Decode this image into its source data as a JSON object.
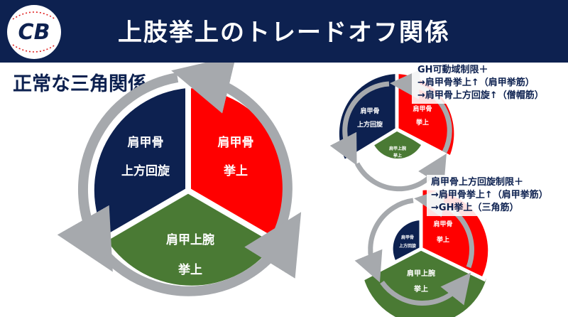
{
  "header": {
    "title": "上肢挙上のトレードオフ関係",
    "logo_text": "CB"
  },
  "colors": {
    "navy": "#0d2150",
    "red": "#ff0000",
    "green": "#4a7a34",
    "arrow_gray": "#a6a9ad"
  },
  "main": {
    "subtitle": "正常な三角関係",
    "segments": {
      "upward_rotation": {
        "line1": "肩甲骨",
        "line2": "上方回旋"
      },
      "scapular_elevation": {
        "line1": "肩甲骨",
        "line2": "挙上"
      },
      "humeral_elevation": {
        "line1": "肩甲上腕",
        "line2": "挙上"
      }
    }
  },
  "case1": {
    "note_lines": [
      "GH可動域制限＋",
      "→肩甲骨挙上↑（肩甲挙筋）",
      "→肩甲骨上方回旋↑（僧帽筋）"
    ],
    "segments": {
      "upward_rotation": {
        "line1": "肩甲骨",
        "line2": "上方回旋"
      },
      "scapular_elevation": {
        "line1": "肩甲骨",
        "line2": "挙上"
      },
      "humeral_elevation": {
        "line1": "肩甲上腕",
        "line2": "挙上"
      }
    }
  },
  "case2": {
    "note_lines": [
      "肩甲骨上方回旋制限＋",
      "→肩甲骨挙上↑（肩甲挙筋）",
      "→GH挙上（三角筋）"
    ],
    "segments": {
      "upward_rotation": {
        "line1": "肩甲骨",
        "line2": "上方回旋"
      },
      "scapular_elevation": {
        "line1": "肩甲骨",
        "line2": "挙上"
      },
      "humeral_elevation": {
        "line1": "肩甲上腕",
        "line2": "挙上"
      }
    }
  }
}
